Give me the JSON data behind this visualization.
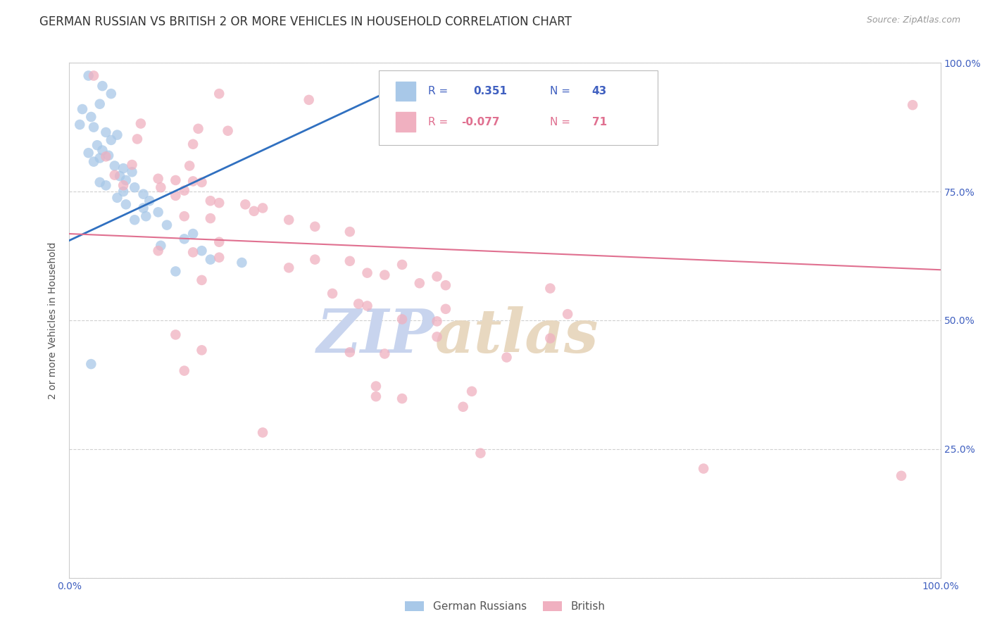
{
  "title": "GERMAN RUSSIAN VS BRITISH 2 OR MORE VEHICLES IN HOUSEHOLD CORRELATION CHART",
  "source": "Source: ZipAtlas.com",
  "ylabel": "2 or more Vehicles in Household",
  "xlim": [
    0.0,
    1.0
  ],
  "ylim": [
    0.0,
    1.0
  ],
  "legend_label1": "German Russians",
  "legend_label2": "British",
  "blue_color": "#a8c8e8",
  "pink_color": "#f0b0c0",
  "blue_line_color": "#3070c0",
  "pink_line_color": "#e07090",
  "watermark_zip_color": "#c8d8f0",
  "watermark_atlas_color": "#d8c8b0",
  "grid_color": "#d0d0d0",
  "bg_color": "#ffffff",
  "title_fontsize": 12,
  "source_fontsize": 9,
  "axis_fontsize": 10,
  "label_fontsize": 10,
  "blue_scatter": [
    [
      0.022,
      0.975
    ],
    [
      0.038,
      0.955
    ],
    [
      0.048,
      0.94
    ],
    [
      0.035,
      0.92
    ],
    [
      0.015,
      0.91
    ],
    [
      0.025,
      0.895
    ],
    [
      0.012,
      0.88
    ],
    [
      0.028,
      0.875
    ],
    [
      0.042,
      0.865
    ],
    [
      0.055,
      0.86
    ],
    [
      0.048,
      0.85
    ],
    [
      0.032,
      0.84
    ],
    [
      0.038,
      0.83
    ],
    [
      0.022,
      0.825
    ],
    [
      0.045,
      0.82
    ],
    [
      0.035,
      0.815
    ],
    [
      0.028,
      0.808
    ],
    [
      0.052,
      0.8
    ],
    [
      0.062,
      0.795
    ],
    [
      0.072,
      0.788
    ],
    [
      0.058,
      0.78
    ],
    [
      0.065,
      0.772
    ],
    [
      0.035,
      0.768
    ],
    [
      0.042,
      0.762
    ],
    [
      0.075,
      0.758
    ],
    [
      0.062,
      0.75
    ],
    [
      0.085,
      0.745
    ],
    [
      0.055,
      0.738
    ],
    [
      0.092,
      0.732
    ],
    [
      0.065,
      0.725
    ],
    [
      0.085,
      0.718
    ],
    [
      0.102,
      0.71
    ],
    [
      0.088,
      0.702
    ],
    [
      0.075,
      0.695
    ],
    [
      0.112,
      0.685
    ],
    [
      0.142,
      0.668
    ],
    [
      0.132,
      0.658
    ],
    [
      0.105,
      0.645
    ],
    [
      0.152,
      0.635
    ],
    [
      0.162,
      0.618
    ],
    [
      0.198,
      0.612
    ],
    [
      0.122,
      0.595
    ],
    [
      0.025,
      0.415
    ]
  ],
  "pink_scatter": [
    [
      0.028,
      0.975
    ],
    [
      0.172,
      0.94
    ],
    [
      0.275,
      0.928
    ],
    [
      0.415,
      0.918
    ],
    [
      0.968,
      0.918
    ],
    [
      0.082,
      0.882
    ],
    [
      0.148,
      0.872
    ],
    [
      0.182,
      0.868
    ],
    [
      0.078,
      0.852
    ],
    [
      0.142,
      0.842
    ],
    [
      0.042,
      0.818
    ],
    [
      0.072,
      0.802
    ],
    [
      0.138,
      0.8
    ],
    [
      0.052,
      0.782
    ],
    [
      0.102,
      0.775
    ],
    [
      0.122,
      0.772
    ],
    [
      0.142,
      0.77
    ],
    [
      0.152,
      0.768
    ],
    [
      0.062,
      0.762
    ],
    [
      0.105,
      0.758
    ],
    [
      0.132,
      0.752
    ],
    [
      0.122,
      0.742
    ],
    [
      0.162,
      0.732
    ],
    [
      0.172,
      0.728
    ],
    [
      0.202,
      0.725
    ],
    [
      0.222,
      0.718
    ],
    [
      0.212,
      0.712
    ],
    [
      0.132,
      0.702
    ],
    [
      0.162,
      0.698
    ],
    [
      0.252,
      0.695
    ],
    [
      0.282,
      0.682
    ],
    [
      0.322,
      0.672
    ],
    [
      0.172,
      0.652
    ],
    [
      0.102,
      0.635
    ],
    [
      0.142,
      0.632
    ],
    [
      0.172,
      0.622
    ],
    [
      0.282,
      0.618
    ],
    [
      0.322,
      0.615
    ],
    [
      0.382,
      0.608
    ],
    [
      0.252,
      0.602
    ],
    [
      0.342,
      0.592
    ],
    [
      0.362,
      0.588
    ],
    [
      0.422,
      0.585
    ],
    [
      0.152,
      0.578
    ],
    [
      0.402,
      0.572
    ],
    [
      0.432,
      0.568
    ],
    [
      0.552,
      0.562
    ],
    [
      0.302,
      0.552
    ],
    [
      0.332,
      0.532
    ],
    [
      0.342,
      0.528
    ],
    [
      0.432,
      0.522
    ],
    [
      0.572,
      0.512
    ],
    [
      0.382,
      0.502
    ],
    [
      0.422,
      0.498
    ],
    [
      0.122,
      0.472
    ],
    [
      0.422,
      0.468
    ],
    [
      0.552,
      0.465
    ],
    [
      0.152,
      0.442
    ],
    [
      0.322,
      0.438
    ],
    [
      0.362,
      0.435
    ],
    [
      0.502,
      0.428
    ],
    [
      0.132,
      0.402
    ],
    [
      0.352,
      0.372
    ],
    [
      0.462,
      0.362
    ],
    [
      0.352,
      0.352
    ],
    [
      0.382,
      0.348
    ],
    [
      0.452,
      0.332
    ],
    [
      0.222,
      0.282
    ],
    [
      0.472,
      0.242
    ],
    [
      0.728,
      0.212
    ],
    [
      0.955,
      0.198
    ]
  ],
  "blue_trendline_x": [
    0.0,
    0.38
  ],
  "blue_trendline_y": [
    0.655,
    0.955
  ],
  "pink_trendline_x": [
    0.0,
    1.0
  ],
  "pink_trendline_y": [
    0.668,
    0.598
  ]
}
